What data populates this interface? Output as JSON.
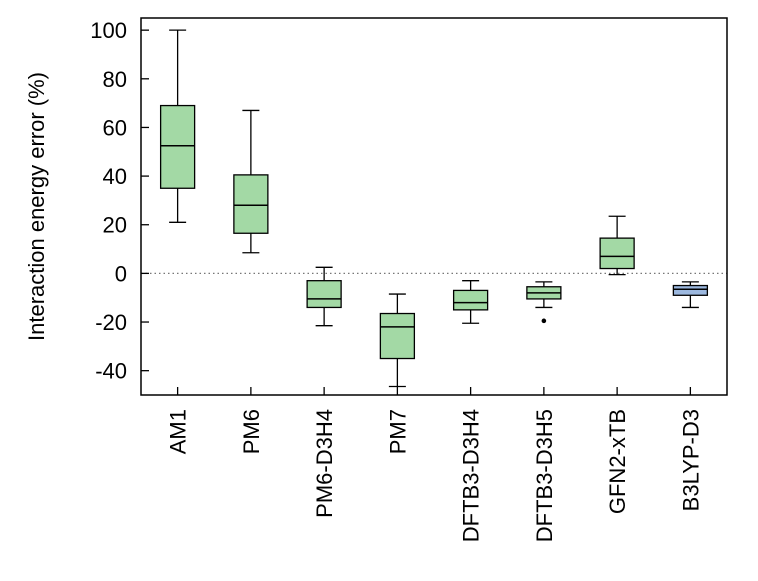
{
  "chart_data": {
    "type": "box",
    "title": "",
    "xlabel": "",
    "ylabel": "Interaction energy error (%)",
    "ylim": [
      -50,
      105
    ],
    "yticks": [
      -40,
      -20,
      0,
      20,
      40,
      60,
      80,
      100
    ],
    "ytick_labels": [
      "-40",
      "-20",
      "0",
      "20",
      "40",
      "60",
      "80",
      "100"
    ],
    "reference_line": {
      "y": 0,
      "style": "dotted",
      "color": "#777777"
    },
    "grid": false,
    "colors": {
      "default_fill": "#a3d9a5",
      "highlight_fill": "#9cb8df",
      "stroke": "#000000"
    },
    "categories": [
      "AM1",
      "PM6",
      "PM6-D3H4",
      "PM7",
      "DFTB3-D3H4",
      "DFTB3-D3H5",
      "GFN2-xTB",
      "B3LYP-D3"
    ],
    "boxes": [
      {
        "min": 21,
        "q1": 35,
        "median": 52.5,
        "q3": 69,
        "max": 100,
        "outliers": [],
        "fill": "#a3d9a5"
      },
      {
        "min": 8.5,
        "q1": 16.5,
        "median": 28,
        "q3": 40.5,
        "max": 67,
        "outliers": [],
        "fill": "#a3d9a5"
      },
      {
        "min": -21.5,
        "q1": -14,
        "median": -10.5,
        "q3": -3,
        "max": 2.5,
        "outliers": [],
        "fill": "#a3d9a5"
      },
      {
        "min": -46.5,
        "q1": -35,
        "median": -22,
        "q3": -16.5,
        "max": -8.5,
        "outliers": [],
        "fill": "#a3d9a5"
      },
      {
        "min": -20.5,
        "q1": -15,
        "median": -12,
        "q3": -7,
        "max": -3,
        "outliers": [],
        "fill": "#a3d9a5"
      },
      {
        "min": -14,
        "q1": -10.5,
        "median": -8,
        "q3": -5.5,
        "max": -3.5,
        "outliers": [
          -19.5
        ],
        "fill": "#a3d9a5"
      },
      {
        "min": -0.5,
        "q1": 2,
        "median": 7,
        "q3": 14.5,
        "max": 23.5,
        "outliers": [],
        "fill": "#a3d9a5"
      },
      {
        "min": -14,
        "q1": -9,
        "median": -6.5,
        "q3": -5,
        "max": -3.5,
        "outliers": [],
        "fill": "#9cb8df"
      }
    ]
  }
}
